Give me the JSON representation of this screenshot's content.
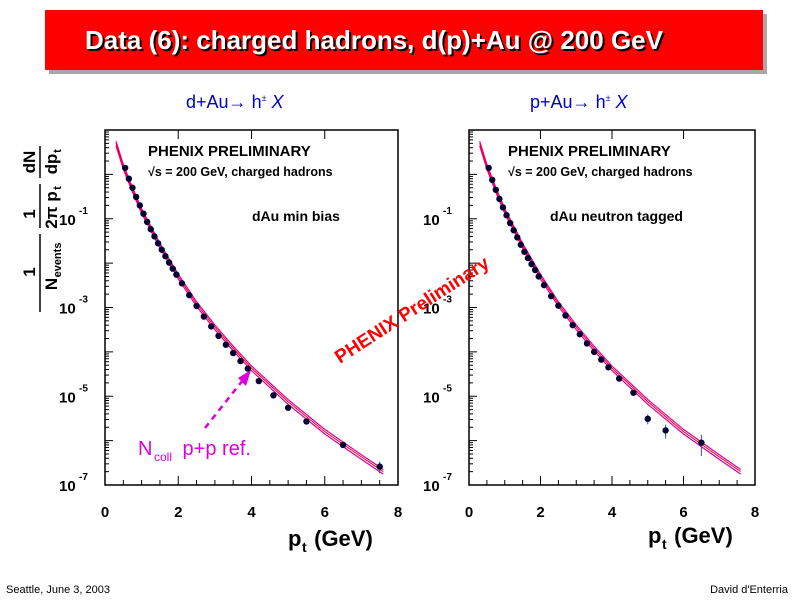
{
  "slide": {
    "title": "Data (6): charged hadrons, d(p)+Au @ 200 GeV",
    "footer_left": "Seattle, June  3, 2003",
    "footer_right": "David d'Enterria",
    "watermark": "PHENIX Preliminary"
  },
  "colors": {
    "title_bg": "#ff0000",
    "heading": "#0000cc",
    "data": "#000033",
    "ref_band": "#dd00aa",
    "ref_center": "#ff0000",
    "annotation": "#dd00dd",
    "watermark": "#ff0000"
  },
  "panels": [
    {
      "heading_prefix": "d+Au",
      "heading_arrow": "→",
      "heading_h": "h",
      "heading_sup": "±",
      "heading_x": "X",
      "label_line1": "PHENIX PRELIMINARY",
      "label_line2": "√s = 200 GeV, charged hadrons",
      "label_line3": "dAu min bias",
      "xlabel_main": "p",
      "xlabel_sub": "t",
      "xlabel_unit": " (GeV)",
      "ylabel": {
        "frac1_num": "1",
        "frac1_den": "N",
        "frac1_den_sub": "events",
        "frac2_num": "1",
        "frac2_den": "2π p",
        "frac2_den_sub": "t",
        "frac3_num": "dN",
        "frac3_den": "dp",
        "frac3_den_sub": "t"
      },
      "annotation": {
        "main": "N",
        "sub": "coll",
        "rest": " p+p ref."
      }
    },
    {
      "heading_prefix": "p+Au",
      "heading_arrow": "→",
      "heading_h": "h",
      "heading_sup": "±",
      "heading_x": "X",
      "label_line1": "PHENIX PRELIMINARY",
      "label_line2": "√s = 200 GeV, charged hadrons",
      "label_line3": "dAu neutron tagged",
      "xlabel_main": "p",
      "xlabel_sub": "t",
      "xlabel_unit": " (GeV)"
    }
  ],
  "chart_data": [
    {
      "type": "scatter",
      "title": "d+Au→ h± X",
      "xlabel": "pt (GeV)",
      "ylabel": "1/Nevents 1/(2π pt) dN/dpt",
      "xlim": [
        0,
        8
      ],
      "ylim": [
        1e-07,
        10
      ],
      "y_scale": "log",
      "x_ticks": [
        "0",
        "2",
        "4",
        "6",
        "8"
      ],
      "y_ticks": [
        {
          "value": 0.1,
          "base": "10",
          "exp": "-1"
        },
        {
          "value": 0.001,
          "base": "10",
          "exp": "-3"
        },
        {
          "value": 1e-05,
          "base": "10",
          "exp": "-5"
        },
        {
          "value": 1e-07,
          "base": "10",
          "exp": "-7"
        }
      ],
      "series": [
        {
          "kind": "points",
          "x": [
            0.55,
            0.65,
            0.75,
            0.85,
            0.95,
            1.05,
            1.15,
            1.25,
            1.35,
            1.45,
            1.55,
            1.65,
            1.75,
            1.85,
            1.95,
            2.1,
            2.3,
            2.5,
            2.7,
            2.9,
            3.1,
            3.3,
            3.5,
            3.7,
            3.9,
            4.2,
            4.6,
            5.0,
            5.5,
            6.5,
            7.5
          ],
          "y": [
            1.4,
            0.8,
            0.5,
            0.31,
            0.2,
            0.13,
            0.085,
            0.058,
            0.04,
            0.028,
            0.02,
            0.0143,
            0.0103,
            0.0075,
            0.0055,
            0.0035,
            0.0019,
            0.00108,
            0.000625,
            0.000375,
            0.00023,
            0.000145,
            9.4e-05,
            6.2e-05,
            4.2e-05,
            2.2e-05,
            1.05e-05,
            5.5e-06,
            2.7e-06,
            8e-07,
            2.6e-07
          ],
          "err": [
            0,
            0,
            0,
            0,
            0,
            0,
            0,
            0,
            0,
            0,
            0,
            0,
            0,
            0,
            0,
            0,
            0,
            0,
            0,
            0,
            0,
            0,
            0,
            0,
            0,
            0,
            0,
            0,
            0,
            0,
            0.3
          ]
        },
        {
          "kind": "ref-curve",
          "band_frac": 0.12,
          "x": [
            0.3,
            0.5,
            0.75,
            1.0,
            1.5,
            2.0,
            2.5,
            3.0,
            3.5,
            4.0,
            5.0,
            6.0,
            7.0,
            7.6
          ],
          "y": [
            5.0,
            1.5,
            0.45,
            0.15,
            0.025,
            0.005,
            0.0012,
            0.00036,
            0.00012,
            4.3e-05,
            7.5e-06,
            1.6e-06,
            4.3e-07,
            2e-07
          ]
        }
      ]
    },
    {
      "type": "scatter",
      "title": "p+Au→ h± X",
      "xlabel": "pt (GeV)",
      "xlim": [
        0,
        8
      ],
      "ylim": [
        1e-07,
        10
      ],
      "y_scale": "log",
      "x_ticks": [
        "0",
        "2",
        "4",
        "6",
        "8"
      ],
      "y_ticks": [
        {
          "value": 0.1,
          "base": "10",
          "exp": "-1"
        },
        {
          "value": 0.001,
          "base": "10",
          "exp": "-3"
        },
        {
          "value": 1e-05,
          "base": "10",
          "exp": "-5"
        },
        {
          "value": 1e-07,
          "base": "10",
          "exp": "-7"
        }
      ],
      "series": [
        {
          "kind": "points",
          "x": [
            0.55,
            0.65,
            0.75,
            0.85,
            0.95,
            1.05,
            1.15,
            1.25,
            1.35,
            1.45,
            1.55,
            1.65,
            1.75,
            1.85,
            1.95,
            2.1,
            2.3,
            2.5,
            2.7,
            2.9,
            3.1,
            3.3,
            3.5,
            3.7,
            3.9,
            4.2,
            4.6,
            5.0,
            5.5,
            6.5
          ],
          "y": [
            1.4,
            0.75,
            0.45,
            0.28,
            0.18,
            0.12,
            0.08,
            0.055,
            0.038,
            0.026,
            0.018,
            0.013,
            0.0095,
            0.007,
            0.005,
            0.0032,
            0.0018,
            0.0011,
            0.00066,
            0.0004,
            0.00025,
            0.000155,
            0.0001,
            6.7e-05,
            4.5e-05,
            2.5e-05,
            1.2e-05,
            3.1e-06,
            1.7e-06,
            9e-07
          ],
          "err": [
            0,
            0,
            0,
            0,
            0,
            0,
            0,
            0,
            0,
            0,
            0,
            0,
            0,
            0,
            0,
            0,
            0,
            0,
            0,
            0,
            0,
            0,
            0,
            0,
            0,
            0,
            0,
            0.25,
            0.35,
            0.5
          ]
        },
        {
          "kind": "ref-curve",
          "band_frac": 0.12,
          "x": [
            0.3,
            0.5,
            0.75,
            1.0,
            1.5,
            2.0,
            2.5,
            3.0,
            3.5,
            4.0,
            5.0,
            6.0,
            7.0,
            7.6
          ],
          "y": [
            5.0,
            1.5,
            0.45,
            0.15,
            0.025,
            0.005,
            0.0012,
            0.00036,
            0.00012,
            4.3e-05,
            7.5e-06,
            1.6e-06,
            4.3e-07,
            2e-07
          ]
        }
      ]
    }
  ]
}
